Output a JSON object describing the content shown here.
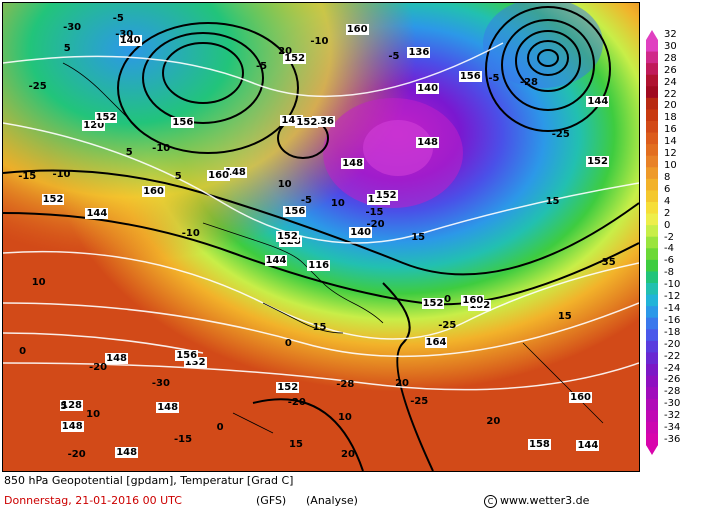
{
  "map": {
    "caption": "850 hPa Geopotential [gpdam], Temperatur [Grad C]",
    "date": "Donnerstag, 21-01-2016  00 UTC",
    "model": "(GFS)",
    "run": "(Analyse)",
    "credit": "www.wetter3.de",
    "geopotential_labels": [
      "116",
      "120",
      "128",
      "128",
      "132",
      "132",
      "136",
      "136",
      "140",
      "140",
      "140",
      "144",
      "144",
      "144",
      "144",
      "148",
      "148",
      "148",
      "148",
      "148",
      "148",
      "148",
      "148",
      "152",
      "152",
      "152",
      "152",
      "152",
      "152",
      "152",
      "152",
      "152",
      "152",
      "156",
      "156",
      "156",
      "156",
      "158",
      "160",
      "160",
      "160",
      "160",
      "160",
      "164"
    ],
    "temperature_labels": [
      "-15",
      "-15",
      "-15",
      "-20",
      "-20",
      "-20",
      "-20",
      "-25",
      "-25",
      "-25",
      "-25",
      "-30",
      "-30",
      "-30",
      "-28",
      "-28",
      "-10",
      "-10",
      "-10",
      "-10",
      "-5",
      "-5",
      "-5",
      "-5",
      "-5",
      "0",
      "0",
      "0",
      "0",
      "5",
      "5",
      "5",
      "5",
      "10",
      "10",
      "10",
      "10",
      "10",
      "15",
      "15",
      "15",
      "15",
      "15",
      "20",
      "20",
      "20",
      "20",
      "-35"
    ]
  },
  "colorbar": {
    "ticks": [
      "32",
      "30",
      "28",
      "26",
      "24",
      "22",
      "20",
      "18",
      "16",
      "14",
      "12",
      "10",
      "8",
      "6",
      "4",
      "2",
      "0",
      "-2",
      "-4",
      "-6",
      "-8",
      "-10",
      "-12",
      "-14",
      "-16",
      "-18",
      "-20",
      "-22",
      "-24",
      "-26",
      "-28",
      "-30",
      "-32",
      "-34",
      "-36"
    ],
    "colors": [
      "#e040c0",
      "#d02a8a",
      "#c01a5a",
      "#b01230",
      "#a00a20",
      "#b82a12",
      "#c83a10",
      "#d24a18",
      "#dc5c1c",
      "#e26e20",
      "#e88228",
      "#ee9a2a",
      "#f2b22a",
      "#f4c82e",
      "#f6de38",
      "#eeee4a",
      "#c8ee48",
      "#9ae43e",
      "#6cd836",
      "#3ecc40",
      "#22c47a",
      "#22c0b0",
      "#22b4d8",
      "#2c98e8",
      "#3a78ec",
      "#4a58ea",
      "#5a3cde",
      "#6a28d2",
      "#7c18c6",
      "#8e10c0",
      "#a00cbc",
      "#b00ab8",
      "#c008b4",
      "#cc06b0",
      "#d804ac"
    ]
  }
}
